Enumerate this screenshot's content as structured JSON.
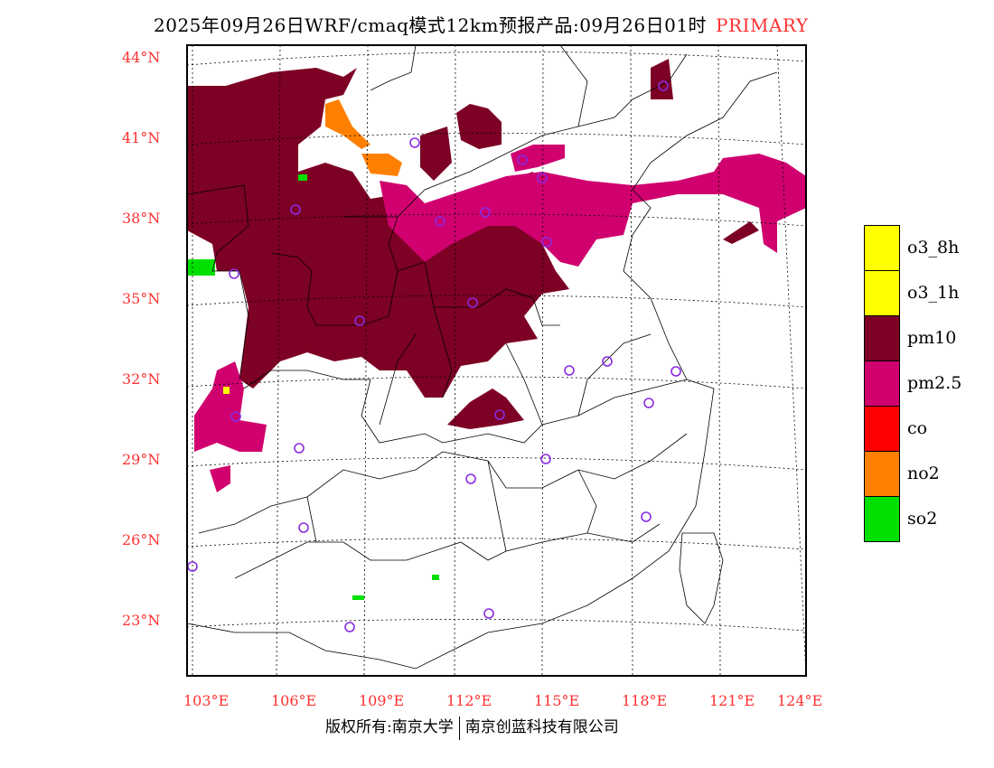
{
  "title": {
    "main": "2025年09月26日WRF/cmaq模式12km预报产品:09月26日01时",
    "tag": "PRIMARY"
  },
  "lat_labels": [
    "44°N",
    "41°N",
    "38°N",
    "35°N",
    "32°N",
    "29°N",
    "26°N",
    "23°N"
  ],
  "lon_labels": [
    "103°E",
    "106°E",
    "109°E",
    "112°E",
    "115°E",
    "118°E",
    "121°E",
    "124°E"
  ],
  "legend": [
    {
      "label": "o3_8h",
      "color": "#ffff00"
    },
    {
      "label": "o3_1h",
      "color": "#ffff00"
    },
    {
      "label": "pm10",
      "color": "#7d0025"
    },
    {
      "label": "pm2.5",
      "color": "#d0006e"
    },
    {
      "label": "co",
      "color": "#ff0000"
    },
    {
      "label": "no2",
      "color": "#ff8000"
    },
    {
      "label": "so2",
      "color": "#00e000"
    }
  ],
  "footer": {
    "left": "版权所有:南京大学",
    "right": "南京创蓝科技有限公司"
  }
}
